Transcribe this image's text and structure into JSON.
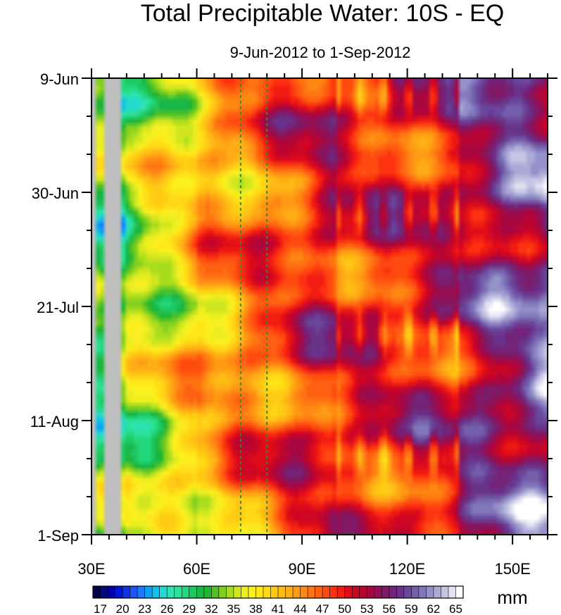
{
  "chart_data": {
    "type": "heatmap",
    "title": "Total Precipitable Water: 10S - EQ",
    "subtitle": "9-Jun-2012 to 1-Sep-2012",
    "x_axis": {
      "ticks": [
        {
          "value": 30,
          "label": "30E"
        },
        {
          "value": 60,
          "label": "60E"
        },
        {
          "value": 90,
          "label": "90E"
        },
        {
          "value": 120,
          "label": "120E"
        },
        {
          "value": 150,
          "label": "150E"
        }
      ],
      "range": [
        30,
        160
      ]
    },
    "y_axis": {
      "ticks": [
        {
          "value": "2012-06-09",
          "label": "9-Jun"
        },
        {
          "value": "2012-06-30",
          "label": "30-Jun"
        },
        {
          "value": "2012-07-21",
          "label": "21-Jul"
        },
        {
          "value": "2012-08-11",
          "label": "11-Aug"
        },
        {
          "value": "2012-09-01",
          "label": "1-Sep"
        }
      ],
      "range": [
        "2012-06-09",
        "2012-09-01"
      ]
    },
    "reference_lines_lon": [
      72.5,
      80
    ],
    "reference_line_color": "#2e8b2e",
    "land_mask_color": "#bebebe",
    "colorbar": {
      "unit": "mm",
      "labels": [
        "17",
        "20",
        "23",
        "26",
        "29",
        "32",
        "35",
        "38",
        "41",
        "44",
        "47",
        "50",
        "53",
        "56",
        "59",
        "62",
        "65"
      ],
      "levels": [
        16,
        17,
        18,
        19,
        20,
        21,
        22,
        23,
        24,
        25,
        26,
        27,
        28,
        29,
        30,
        31,
        32,
        33,
        34,
        35,
        36,
        37,
        38,
        39,
        40,
        41,
        42,
        43,
        44,
        45,
        46,
        47,
        48,
        49,
        50,
        51,
        52,
        53,
        54,
        55,
        56,
        57,
        58,
        59,
        60,
        61,
        62,
        63,
        64,
        65
      ],
      "colors": [
        "#00004c",
        "#000c7d",
        "#0000a7",
        "#0015d0",
        "#0d32ea",
        "#1c55f7",
        "#1e78fb",
        "#0aa0f5",
        "#0dc3e9",
        "#26d9cf",
        "#2ee2b4",
        "#2ce298",
        "#23d87c",
        "#1fc861",
        "#17b749",
        "#22b533",
        "#52c126",
        "#7fcf20",
        "#a7dc1f",
        "#cfe61f",
        "#eaee22",
        "#fbf01f",
        "#ffe61a",
        "#ffd816",
        "#ffca14",
        "#ffbc15",
        "#ffac16",
        "#ff9a14",
        "#ff8813",
        "#ff7412",
        "#ff5f11",
        "#ff4a10",
        "#fd3211",
        "#f11c12",
        "#df0d1a",
        "#cd0625",
        "#ba0532",
        "#a70741",
        "#940f53",
        "#811966",
        "#732478",
        "#6a338a",
        "#6b479c",
        "#745fab",
        "#8178bb",
        "#9591c9",
        "#abaad7",
        "#c4c4e4",
        "#e2e1f1",
        "#ffffff"
      ]
    }
  }
}
